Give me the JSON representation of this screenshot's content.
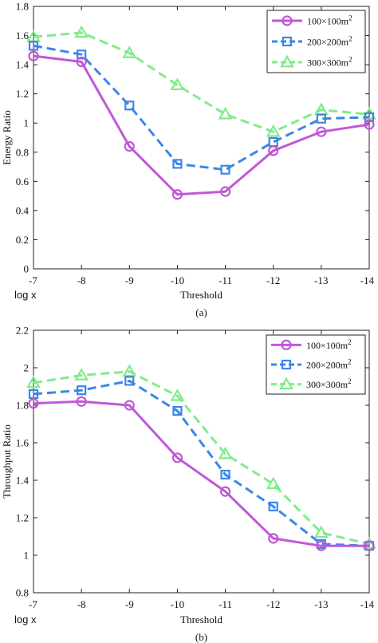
{
  "chart_data": [
    {
      "type": "line",
      "caption": "(a)",
      "xlabel": "Threshold",
      "ylabel": "Energy Ratio",
      "x_note": "log x",
      "categories": [
        "-7",
        "-8",
        "-9",
        "-10",
        "-11",
        "-12",
        "-13",
        "-14"
      ],
      "ylim": [
        0,
        1.8
      ],
      "yticks": [
        "0",
        "0.2",
        "0.4",
        "0.6",
        "0.8",
        "1",
        "1.2",
        "1.4",
        "1.6",
        "1.8"
      ],
      "grid": false,
      "legend_position": "top-right",
      "series": [
        {
          "name": "100×100m²",
          "marker": "circle",
          "color": "#c157d8",
          "dash": "solid",
          "values": [
            1.46,
            1.42,
            0.84,
            0.51,
            0.53,
            0.81,
            0.94,
            0.99
          ]
        },
        {
          "name": "200×200m²",
          "marker": "square",
          "color": "#3c86e8",
          "dash": "dashed",
          "values": [
            1.53,
            1.47,
            1.12,
            0.72,
            0.68,
            0.87,
            1.03,
            1.04
          ]
        },
        {
          "name": "300×300m²",
          "marker": "triangle",
          "color": "#7fec8a",
          "dash": "dashed",
          "values": [
            1.59,
            1.62,
            1.48,
            1.26,
            1.06,
            0.94,
            1.09,
            1.06
          ]
        }
      ]
    },
    {
      "type": "line",
      "caption": "(b)",
      "xlabel": "Threshold",
      "ylabel": "Throughput Ratio",
      "x_note": "log x",
      "categories": [
        "-7",
        "-8",
        "-9",
        "-10",
        "-11",
        "-12",
        "-13",
        "-14"
      ],
      "ylim": [
        0.8,
        2.2
      ],
      "yticks": [
        "0.8",
        "1",
        "1.2",
        "1.4",
        "1.6",
        "1.8",
        "2",
        "2.2"
      ],
      "grid": false,
      "legend_position": "top-right",
      "series": [
        {
          "name": "100×100m²",
          "marker": "circle",
          "color": "#c157d8",
          "dash": "solid",
          "values": [
            1.81,
            1.82,
            1.8,
            1.52,
            1.34,
            1.09,
            1.05,
            1.05
          ]
        },
        {
          "name": "200×200m²",
          "marker": "square",
          "color": "#3c86e8",
          "dash": "dashed",
          "values": [
            1.86,
            1.88,
            1.93,
            1.77,
            1.43,
            1.26,
            1.06,
            1.05
          ]
        },
        {
          "name": "300×300m²",
          "marker": "triangle",
          "color": "#7fec8a",
          "dash": "dashed",
          "values": [
            1.92,
            1.96,
            1.98,
            1.85,
            1.54,
            1.38,
            1.12,
            1.06
          ]
        }
      ]
    }
  ]
}
